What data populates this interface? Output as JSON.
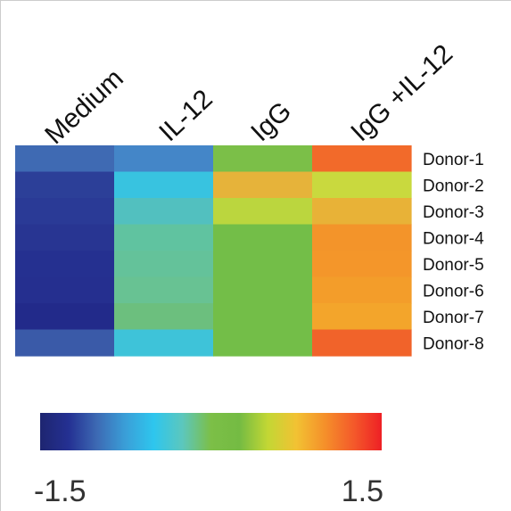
{
  "chart_data": {
    "type": "heatmap",
    "title": "",
    "columns": [
      "Medium",
      "IL-12",
      "IgG",
      "IgG +IL-12"
    ],
    "rows": [
      "Donor-1",
      "Donor-2",
      "Donor-3",
      "Donor-4",
      "Donor-5",
      "Donor-6",
      "Donor-7",
      "Donor-8"
    ],
    "values": [
      [
        -1.0,
        -0.8,
        0.3,
        1.3
      ],
      [
        -1.3,
        -0.4,
        0.95,
        0.55
      ],
      [
        -1.35,
        -0.2,
        0.55,
        0.95
      ],
      [
        -1.4,
        -0.1,
        0.3,
        1.15
      ],
      [
        -1.45,
        -0.1,
        0.3,
        1.15
      ],
      [
        -1.45,
        -0.05,
        0.3,
        1.1
      ],
      [
        -1.5,
        0.0,
        0.3,
        1.1
      ],
      [
        -1.0,
        -0.4,
        0.3,
        1.3
      ]
    ],
    "cell_colors": [
      [
        "#3f6ab3",
        "#4486c8",
        "#7bbf48",
        "#f26a2a"
      ],
      [
        "#2c3f98",
        "#38c3e0",
        "#e6b33a",
        "#c9d93e"
      ],
      [
        "#2a3a96",
        "#52c0bf",
        "#bbd63e",
        "#e8b237"
      ],
      [
        "#283592",
        "#60c3a0",
        "#73be48",
        "#f3942a"
      ],
      [
        "#253090",
        "#64c29a",
        "#73be48",
        "#f4962a"
      ],
      [
        "#252f8f",
        "#68c293",
        "#73be48",
        "#f39d2a"
      ],
      [
        "#222a8a",
        "#6cbf7e",
        "#73be48",
        "#f3a52b"
      ],
      [
        "#3a5aa8",
        "#3ec3d9",
        "#73be48",
        "#f1632a"
      ]
    ],
    "colorbar": {
      "min": -1.5,
      "max": 1.5,
      "min_label": "-1.5",
      "max_label": "1.5",
      "colors": [
        "#1e2570",
        "#243092",
        "#3d6ab4",
        "#3a9fd8",
        "#2ec6ee",
        "#5cc7bd",
        "#7cbf47",
        "#74bb43",
        "#c3d734",
        "#f2c233",
        "#f5902a",
        "#f45a2a",
        "#ee2025"
      ]
    }
  }
}
